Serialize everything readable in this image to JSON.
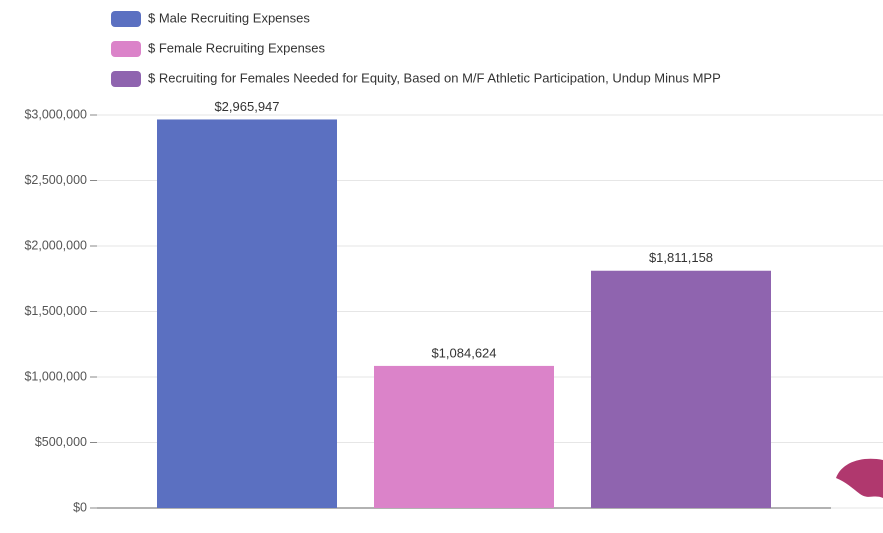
{
  "chart_data": {
    "type": "bar",
    "categories": [
      null
    ],
    "series": [
      {
        "name": "$ Male Recruiting Expenses",
        "color": "#5b70c1",
        "values": [
          2965947
        ],
        "value_labels": [
          "$2,965,947"
        ]
      },
      {
        "name": "$ Female Recruiting Expenses",
        "color": "#db83c9",
        "values": [
          1084624
        ],
        "value_labels": [
          "$1,084,624"
        ]
      },
      {
        "name": "$ Recruiting for Females Needed for Equity, Based on M/F Athletic Participation, Undup Minus MPP",
        "color": "#8f64af",
        "values": [
          1811158
        ],
        "value_labels": [
          "$1,811,158"
        ]
      }
    ],
    "ylim": [
      0,
      3000000
    ],
    "yticks": [
      {
        "value": 0,
        "label": "$0"
      },
      {
        "value": 500000,
        "label": "$500,000"
      },
      {
        "value": 1000000,
        "label": "$1,000,000"
      },
      {
        "value": 1500000,
        "label": "$1,500,000"
      },
      {
        "value": 2000000,
        "label": "$2,000,000"
      },
      {
        "value": 2500000,
        "label": "$2,500,000"
      },
      {
        "value": 3000000,
        "label": "$3,000,000"
      }
    ],
    "grid": true,
    "legend": "top-left"
  }
}
